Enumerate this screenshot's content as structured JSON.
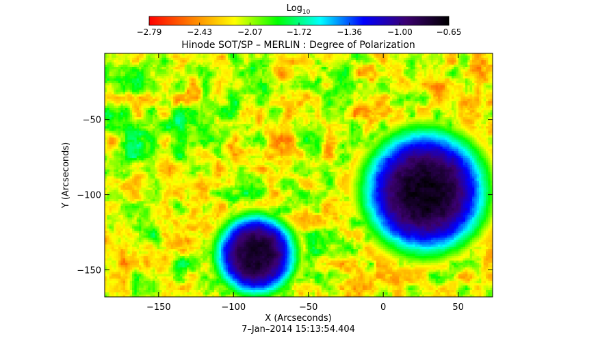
{
  "chart_data": {
    "type": "heatmap",
    "title": "Hinode SOT/SP – MERLIN : Degree of Polarization",
    "subtitle": "",
    "xlabel": "X (Arcseconds)",
    "ylabel": "Y (Arcseconds)",
    "xlim": [
      -186,
      73
    ],
    "ylim": [
      -168,
      -6
    ],
    "x_ticks": [
      -150,
      -100,
      -50,
      0,
      50
    ],
    "x_tick_labels": [
      "−150",
      "−100",
      "−50",
      "0",
      "50"
    ],
    "y_ticks": [
      -50,
      -100,
      -150
    ],
    "y_tick_labels": [
      "−50",
      "−100",
      "−150"
    ],
    "date_label": "7–Jan–2014 15:13:54.404",
    "colorbar": {
      "title_main": "Log",
      "title_sub": "10",
      "placement": "top",
      "range": [
        -2.79,
        -0.65
      ],
      "tick_values": [
        -2.79,
        -2.43,
        -2.07,
        -1.72,
        -1.36,
        -1.0,
        -0.65
      ],
      "tick_labels": [
        "−2.79",
        "−2.43",
        "−2.07",
        "−1.72",
        "−1.36",
        "−1.00",
        "−0.65"
      ],
      "colors": [
        "#ff0000",
        "#ff7f00",
        "#ffff00",
        "#00ff00",
        "#00ffff",
        "#0000ff",
        "#3b0070",
        "#000000"
      ]
    },
    "features": [
      {
        "name": "sunspot",
        "x": 28,
        "y": -98,
        "radius": 38,
        "peak": -0.72
      },
      {
        "name": "sunspot",
        "x": -85,
        "y": -140,
        "radius": 25,
        "peak": -0.75
      }
    ],
    "grid": false
  }
}
